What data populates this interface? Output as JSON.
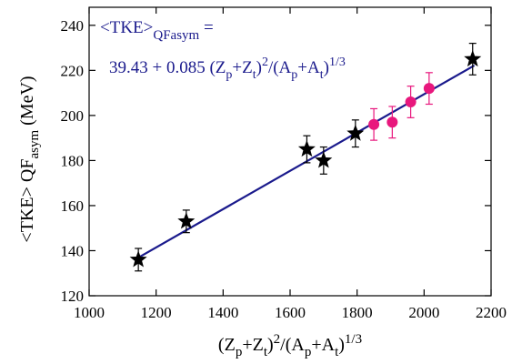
{
  "chart_data": {
    "type": "scatter",
    "x_label": [
      "(Z",
      "p",
      "+Z",
      "t",
      ")",
      "2",
      "/(A",
      "p",
      "+A",
      "t",
      ")",
      "1/3"
    ],
    "y_label": [
      "<TKE> QF",
      "asym",
      " (MeV)"
    ],
    "annotation": {
      "line1": [
        "<TKE>",
        "QFasym",
        " ="
      ],
      "line2": [
        "39.43 + 0.085 (Z",
        "p",
        "+Z",
        "t",
        ")",
        "2",
        "/(A",
        "p",
        "+A",
        "t",
        ")",
        "1/3"
      ]
    },
    "xlim": [
      1000,
      2200
    ],
    "ylim": [
      120,
      248
    ],
    "xticks": [
      1000,
      1200,
      1400,
      1600,
      1800,
      2000,
      2200
    ],
    "yticks": [
      120,
      140,
      160,
      180,
      200,
      220,
      240
    ],
    "series": [
      {
        "marker": "star",
        "color": "#000000",
        "x": [
          1147,
          1290,
          1650,
          1700,
          1795,
          2145
        ],
        "values": [
          136,
          153,
          185,
          180,
          192,
          225
        ],
        "errors": [
          5,
          5,
          6,
          6,
          6,
          7
        ]
      },
      {
        "marker": "circle",
        "color": "#e8177d",
        "x": [
          1850,
          1905,
          1960,
          2015
        ],
        "values": [
          196,
          197,
          206,
          212
        ],
        "errors": [
          7,
          7,
          7,
          7
        ]
      },
      {
        "marker": "line",
        "color": "#1a1a8c",
        "x": [
          1140,
          2150
        ],
        "values": [
          136.33,
          222.18
        ]
      }
    ]
  }
}
